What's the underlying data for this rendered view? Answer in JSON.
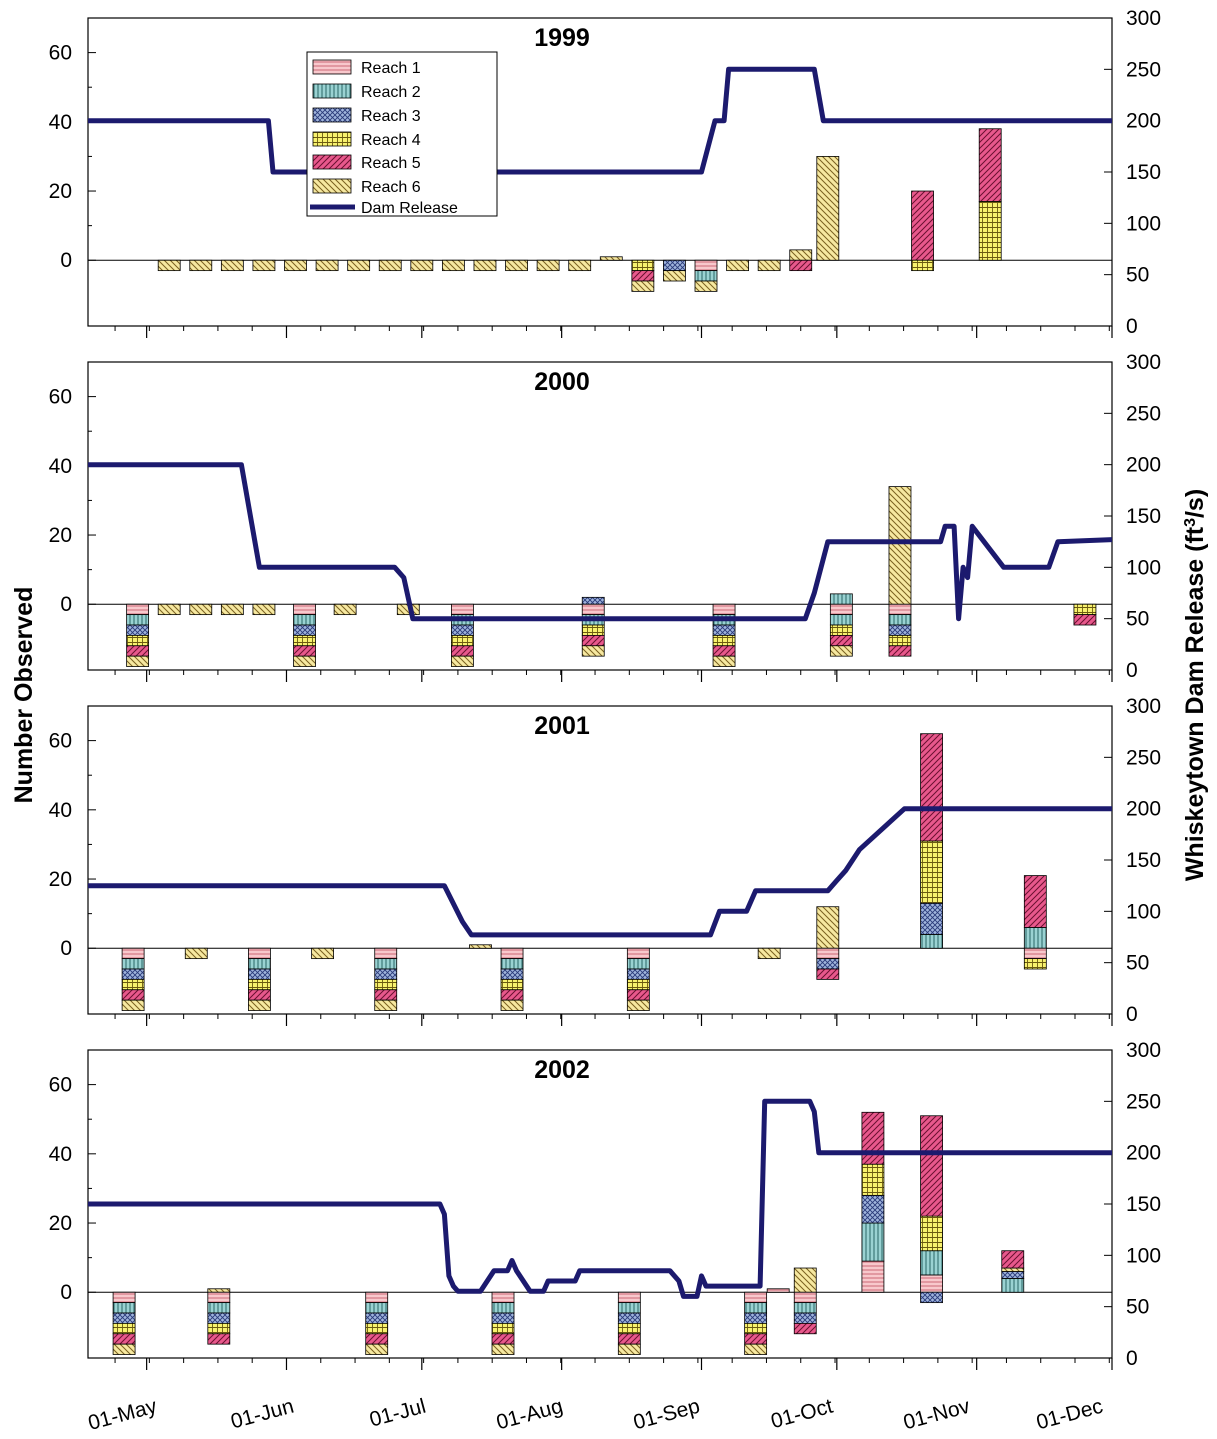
{
  "chart_data": {
    "type": "bar",
    "stacking": "stacked (present above 0, absent below 0)",
    "ylabel": "Number Observed",
    "y2label_main": "Whiskeytown Dam Release (ft",
    "y2label_sup": "3",
    "y2label_end": "/s)",
    "ylim": [
      -19,
      70
    ],
    "yticks": [
      0,
      20,
      40,
      60
    ],
    "y2lim": [
      0,
      300
    ],
    "y2ticks": [
      0,
      50,
      100,
      150,
      200,
      250,
      300
    ],
    "xlim": [
      "04-18",
      "12-01"
    ],
    "xtick_dates": [
      "05-01",
      "06-01",
      "07-01",
      "08-01",
      "09-01",
      "10-01",
      "11-01",
      "12-01"
    ],
    "xtick_labels": [
      "01-May",
      "01-Jun",
      "01-Jul",
      "01-Aug",
      "01-Sep",
      "01-Oct",
      "01-Nov",
      "01-Dec"
    ],
    "series_names": [
      "Reach 1",
      "Reach 2",
      "Reach 3",
      "Reach 4",
      "Reach 5",
      "Reach 6"
    ],
    "line_name": "Dam Release",
    "colors": {
      "reach1": "#f8c8cc",
      "reach2": "#9ad2d2",
      "reach3": "#9fb4dc",
      "reach4": "#f8f26e",
      "reach5": "#e8588c",
      "reach6": "#f6e8a0",
      "line": "#1c1a6e"
    },
    "panels": [
      {
        "title": "1999",
        "legend": "top-left",
        "release": [
          [
            "04-18",
            200
          ],
          [
            "05-28",
            200
          ],
          [
            "05-29",
            150
          ],
          [
            "09-01",
            150
          ],
          [
            "09-04",
            200
          ],
          [
            "09-06",
            200
          ],
          [
            "09-07",
            250
          ],
          [
            "09-26",
            250
          ],
          [
            "09-28",
            200
          ],
          [
            "12-01",
            200
          ]
        ],
        "bars": [
          {
            "date": "05-06",
            "below": [
              6
            ]
          },
          {
            "date": "05-13",
            "below": [
              6
            ]
          },
          {
            "date": "05-20",
            "below": [
              6
            ]
          },
          {
            "date": "05-27",
            "below": [
              6
            ]
          },
          {
            "date": "06-03",
            "below": [
              6
            ]
          },
          {
            "date": "06-10",
            "below": [
              6
            ]
          },
          {
            "date": "06-17",
            "below": [
              6
            ]
          },
          {
            "date": "06-24",
            "below": [
              6
            ]
          },
          {
            "date": "07-01",
            "below": [
              6
            ]
          },
          {
            "date": "07-08",
            "below": [
              6
            ]
          },
          {
            "date": "07-15",
            "below": [
              6
            ]
          },
          {
            "date": "07-22",
            "below": [
              6
            ]
          },
          {
            "date": "07-29",
            "below": [
              6
            ]
          },
          {
            "date": "08-05",
            "below": [
              6
            ]
          },
          {
            "date": "08-12",
            "above": [
              [
                6,
                1
              ]
            ]
          },
          {
            "date": "08-19",
            "below": [
              4,
              5,
              6
            ]
          },
          {
            "date": "08-26",
            "below": [
              3,
              6
            ]
          },
          {
            "date": "09-02",
            "below": [
              1,
              2,
              6
            ]
          },
          {
            "date": "09-09",
            "below": [
              6
            ]
          },
          {
            "date": "09-16",
            "below": [
              6
            ]
          },
          {
            "date": "09-23",
            "above": [
              [
                6,
                3
              ]
            ],
            "below": [
              5
            ]
          },
          {
            "date": "09-29",
            "above": [
              [
                6,
                30
              ]
            ]
          },
          {
            "date": "10-20",
            "above": [
              [
                5,
                20
              ]
            ],
            "below": [
              4
            ]
          },
          {
            "date": "11-04",
            "above": [
              [
                4,
                17
              ],
              [
                5,
                21
              ]
            ]
          }
        ]
      },
      {
        "title": "2000",
        "release": [
          [
            "04-18",
            200
          ],
          [
            "05-22",
            200
          ],
          [
            "05-26",
            100
          ],
          [
            "06-25",
            100
          ],
          [
            "06-27",
            90
          ],
          [
            "06-29",
            50
          ],
          [
            "09-24",
            50
          ],
          [
            "09-26",
            75
          ],
          [
            "09-29",
            125
          ],
          [
            "10-24",
            125
          ],
          [
            "10-25",
            140
          ],
          [
            "10-27",
            140
          ],
          [
            "10-28",
            50
          ],
          [
            "10-29",
            100
          ],
          [
            "10-30",
            90
          ],
          [
            "10-31",
            140
          ],
          [
            "11-07",
            100
          ],
          [
            "11-17",
            100
          ],
          [
            "11-19",
            125
          ],
          [
            "12-01",
            127
          ]
        ],
        "bars": [
          {
            "date": "04-29",
            "below": [
              1,
              2,
              3,
              4,
              5,
              6
            ]
          },
          {
            "date": "05-06",
            "below": [
              6
            ]
          },
          {
            "date": "05-13",
            "below": [
              6
            ]
          },
          {
            "date": "05-20",
            "below": [
              6
            ]
          },
          {
            "date": "05-27",
            "below": [
              6
            ]
          },
          {
            "date": "06-05",
            "below": [
              1,
              2,
              3,
              4,
              5,
              6
            ]
          },
          {
            "date": "06-14",
            "below": [
              6
            ]
          },
          {
            "date": "06-28",
            "below": [
              6
            ]
          },
          {
            "date": "07-10",
            "below": [
              1,
              2,
              3,
              4,
              5,
              6
            ]
          },
          {
            "date": "08-08",
            "above": [
              [
                3,
                2
              ]
            ],
            "below": [
              1,
              2,
              4,
              5,
              6
            ]
          },
          {
            "date": "09-06",
            "below": [
              1,
              2,
              3,
              4,
              5,
              6
            ]
          },
          {
            "date": "10-02",
            "above": [
              [
                2,
                3
              ]
            ],
            "below": [
              1,
              2,
              4,
              5,
              6
            ]
          },
          {
            "date": "10-15",
            "above": [
              [
                6,
                34
              ]
            ],
            "below": [
              1,
              2,
              3,
              4,
              5
            ]
          },
          {
            "date": "11-25",
            "below": [
              4,
              5
            ]
          }
        ]
      },
      {
        "title": "2001",
        "release": [
          [
            "04-18",
            125
          ],
          [
            "07-06",
            125
          ],
          [
            "07-10",
            90
          ],
          [
            "07-12",
            77
          ],
          [
            "09-03",
            77
          ],
          [
            "09-05",
            100
          ],
          [
            "09-11",
            100
          ],
          [
            "09-13",
            120
          ],
          [
            "09-29",
            120
          ],
          [
            "10-01",
            130
          ],
          [
            "10-03",
            140
          ],
          [
            "10-06",
            160
          ],
          [
            "10-16",
            200
          ],
          [
            "12-01",
            200
          ]
        ],
        "bars": [
          {
            "date": "04-28",
            "below": [
              1,
              2,
              3,
              4,
              5,
              6
            ]
          },
          {
            "date": "05-12",
            "below": [
              6
            ]
          },
          {
            "date": "05-26",
            "below": [
              1,
              2,
              3,
              4,
              5,
              6
            ]
          },
          {
            "date": "06-09",
            "below": [
              6
            ]
          },
          {
            "date": "06-23",
            "below": [
              1,
              2,
              3,
              4,
              5,
              6
            ]
          },
          {
            "date": "07-14",
            "above": [
              [
                6,
                1
              ]
            ]
          },
          {
            "date": "07-21",
            "below": [
              1,
              2,
              3,
              4,
              5,
              6
            ]
          },
          {
            "date": "08-18",
            "below": [
              1,
              2,
              3,
              4,
              5,
              6
            ]
          },
          {
            "date": "09-16",
            "below": [
              6
            ]
          },
          {
            "date": "09-29",
            "above": [
              [
                6,
                12
              ]
            ],
            "below": [
              1,
              3,
              5
            ]
          },
          {
            "date": "10-22",
            "above": [
              [
                2,
                4
              ],
              [
                3,
                9
              ],
              [
                4,
                18
              ],
              [
                5,
                31
              ]
            ]
          },
          {
            "date": "11-14",
            "above": [
              [
                2,
                6
              ],
              [
                5,
                15
              ]
            ],
            "below": [
              1,
              4
            ]
          }
        ]
      },
      {
        "title": "2002",
        "release": [
          [
            "04-18",
            150
          ],
          [
            "07-05",
            150
          ],
          [
            "07-06",
            140
          ],
          [
            "07-07",
            80
          ],
          [
            "07-08",
            70
          ],
          [
            "07-09",
            65
          ],
          [
            "07-14",
            65
          ],
          [
            "07-17",
            85
          ],
          [
            "07-20",
            85
          ],
          [
            "07-21",
            95
          ],
          [
            "07-22",
            85
          ],
          [
            "07-25",
            65
          ],
          [
            "07-28",
            65
          ],
          [
            "07-29",
            75
          ],
          [
            "08-04",
            75
          ],
          [
            "08-05",
            85
          ],
          [
            "08-25",
            85
          ],
          [
            "08-27",
            75
          ],
          [
            "08-28",
            60
          ],
          [
            "08-31",
            60
          ],
          [
            "09-01",
            80
          ],
          [
            "09-02",
            70
          ],
          [
            "09-14",
            70
          ],
          [
            "09-15",
            250
          ],
          [
            "09-25",
            250
          ],
          [
            "09-26",
            240
          ],
          [
            "09-27",
            200
          ],
          [
            "12-01",
            200
          ]
        ],
        "bars": [
          {
            "date": "04-26",
            "below": [
              1,
              2,
              3,
              4,
              5,
              6
            ]
          },
          {
            "date": "05-17",
            "above": [
              [
                6,
                1
              ]
            ],
            "below": [
              1,
              2,
              3,
              4,
              5
            ]
          },
          {
            "date": "06-21",
            "below": [
              1,
              2,
              3,
              4,
              5,
              6
            ]
          },
          {
            "date": "07-19",
            "below": [
              1,
              2,
              3,
              4,
              5,
              6
            ]
          },
          {
            "date": "08-16",
            "below": [
              1,
              2,
              3,
              4,
              5,
              6
            ]
          },
          {
            "date": "09-13",
            "below": [
              1,
              2,
              3,
              4,
              5,
              6
            ]
          },
          {
            "date": "09-18",
            "above": [
              [
                1,
                1
              ]
            ]
          },
          {
            "date": "09-24",
            "above": [
              [
                6,
                7
              ]
            ],
            "below": [
              1,
              2,
              3,
              5
            ]
          },
          {
            "date": "10-09",
            "above": [
              [
                1,
                9
              ],
              [
                2,
                11
              ],
              [
                3,
                8
              ],
              [
                4,
                9
              ],
              [
                5,
                15
              ]
            ]
          },
          {
            "date": "10-22",
            "above": [
              [
                1,
                5
              ],
              [
                2,
                7
              ],
              [
                4,
                10
              ],
              [
                5,
                29
              ]
            ],
            "below": [
              3
            ]
          },
          {
            "date": "11-09",
            "above": [
              [
                2,
                4
              ],
              [
                3,
                2
              ],
              [
                6,
                1
              ],
              [
                5,
                5
              ]
            ]
          }
        ]
      }
    ]
  }
}
